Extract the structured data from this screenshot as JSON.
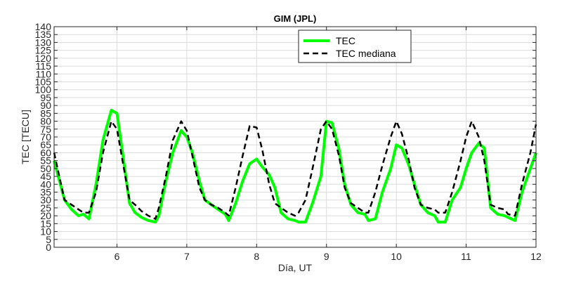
{
  "chart_data": {
    "type": "line",
    "title": "GIM (JPL)",
    "xlabel": "Día, UT",
    "ylabel": "TEC [TECU]",
    "xlim": [
      5.1,
      12
    ],
    "ylim": [
      0,
      140
    ],
    "x_ticks": [
      6,
      7,
      8,
      9,
      10,
      11,
      12
    ],
    "x_tick_labels": [
      "6",
      "7",
      "8",
      "9",
      "10",
      "11",
      "12"
    ],
    "y_ticks": [
      0,
      5,
      10,
      15,
      20,
      25,
      30,
      35,
      40,
      45,
      50,
      55,
      60,
      65,
      70,
      75,
      80,
      85,
      90,
      95,
      100,
      105,
      110,
      115,
      120,
      125,
      130,
      135,
      140
    ],
    "y_tick_labels": [
      "0",
      "5",
      "10",
      "15",
      "20",
      "25",
      "30",
      "35",
      "40",
      "45",
      "50",
      "55",
      "60",
      "65",
      "70",
      "75",
      "80",
      "85",
      "90",
      "95",
      "100",
      "105",
      "110",
      "115",
      "120",
      "125",
      "130",
      "135",
      "140"
    ],
    "grid": true,
    "legend_position": "top",
    "series": [
      {
        "name": "TEC",
        "color": "#00ff00",
        "style": "solid",
        "x": [
          5.1,
          5.25,
          5.35,
          5.45,
          5.52,
          5.6,
          5.7,
          5.8,
          5.92,
          6.0,
          6.08,
          6.18,
          6.26,
          6.35,
          6.45,
          6.55,
          6.6,
          6.7,
          6.8,
          6.92,
          7.0,
          7.08,
          7.18,
          7.26,
          7.35,
          7.45,
          7.55,
          7.6,
          7.7,
          7.8,
          7.9,
          8.0,
          8.08,
          8.18,
          8.26,
          8.35,
          8.45,
          8.55,
          8.6,
          8.7,
          8.8,
          8.92,
          9.0,
          9.08,
          9.18,
          9.26,
          9.35,
          9.45,
          9.55,
          9.6,
          9.7,
          9.8,
          9.92,
          10.0,
          10.08,
          10.18,
          10.26,
          10.35,
          10.45,
          10.55,
          10.6,
          10.7,
          10.8,
          10.92,
          11.0,
          11.08,
          11.18,
          11.26,
          11.35,
          11.45,
          11.55,
          11.6,
          11.7,
          11.8,
          11.92,
          12.0
        ],
        "y": [
          55,
          30,
          24,
          20,
          21,
          18,
          40,
          68,
          87,
          85,
          60,
          28,
          22,
          19,
          17,
          16,
          20,
          42,
          60,
          74,
          70,
          60,
          42,
          30,
          27,
          24,
          21,
          17,
          28,
          42,
          53,
          56,
          51,
          46,
          38,
          22,
          18,
          17,
          16,
          16,
          28,
          45,
          80,
          79,
          62,
          40,
          27,
          22,
          21,
          17,
          18,
          35,
          50,
          65,
          63,
          52,
          40,
          27,
          22,
          20,
          16,
          16,
          30,
          38,
          50,
          60,
          66,
          63,
          25,
          21,
          20,
          19,
          17,
          35,
          50,
          60
        ]
      },
      {
        "name": "TEC mediana",
        "color": "#000000",
        "style": "dashed",
        "x": [
          5.1,
          5.25,
          5.35,
          5.45,
          5.52,
          5.6,
          5.7,
          5.8,
          5.92,
          6.0,
          6.08,
          6.18,
          6.26,
          6.35,
          6.45,
          6.55,
          6.6,
          6.7,
          6.8,
          6.92,
          7.0,
          7.08,
          7.18,
          7.26,
          7.35,
          7.45,
          7.55,
          7.6,
          7.7,
          7.8,
          7.9,
          8.0,
          8.08,
          8.18,
          8.26,
          8.35,
          8.45,
          8.55,
          8.6,
          8.7,
          8.8,
          8.92,
          9.0,
          9.08,
          9.18,
          9.26,
          9.35,
          9.45,
          9.55,
          9.6,
          9.7,
          9.8,
          9.92,
          10.0,
          10.08,
          10.18,
          10.26,
          10.35,
          10.45,
          10.55,
          10.6,
          10.7,
          10.8,
          10.92,
          11.0,
          11.08,
          11.18,
          11.26,
          11.35,
          11.45,
          11.55,
          11.6,
          11.7,
          11.8,
          11.92,
          12.0
        ],
        "y": [
          60,
          30,
          27,
          24,
          22,
          22,
          35,
          60,
          80,
          75,
          55,
          30,
          27,
          23,
          20,
          18,
          25,
          45,
          68,
          80,
          74,
          58,
          38,
          30,
          27,
          25,
          22,
          20,
          38,
          58,
          77,
          76,
          62,
          40,
          28,
          25,
          22,
          20,
          22,
          30,
          50,
          75,
          80,
          75,
          58,
          38,
          28,
          25,
          22,
          22,
          35,
          52,
          70,
          80,
          72,
          55,
          38,
          27,
          25,
          24,
          22,
          22,
          35,
          55,
          70,
          80,
          70,
          55,
          27,
          25,
          24,
          21,
          20,
          40,
          60,
          78
        ]
      }
    ]
  }
}
